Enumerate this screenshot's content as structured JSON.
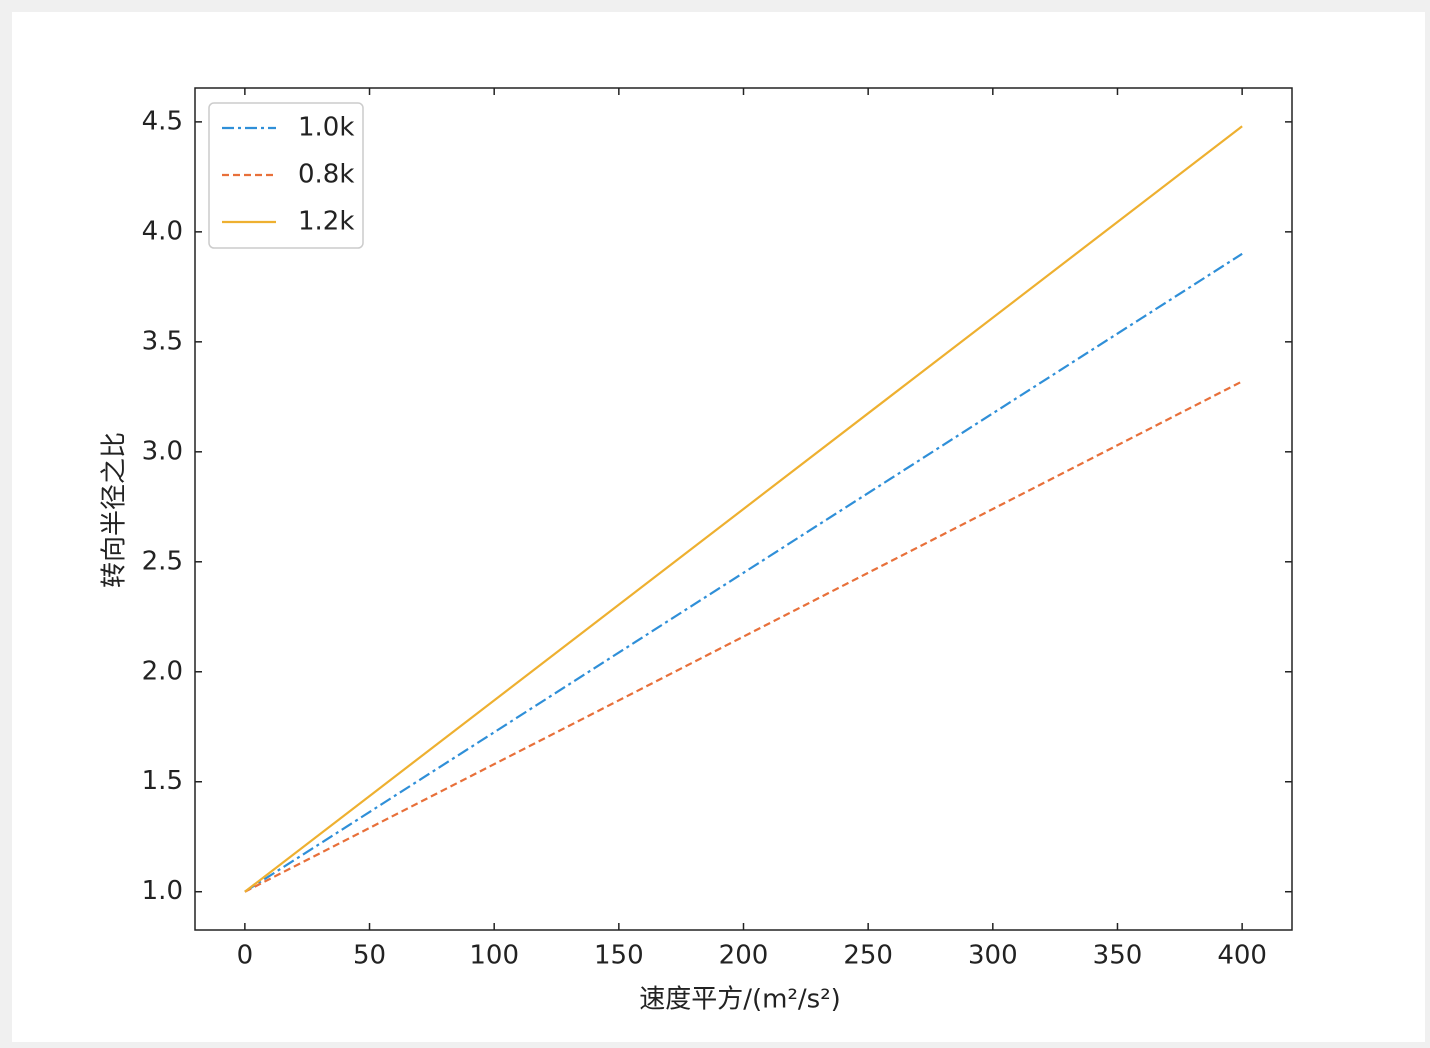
{
  "chart_data": {
    "type": "line",
    "xlabel": "速度平方/(m²/s²)",
    "ylabel": "转向半径之比",
    "x": [
      0,
      400
    ],
    "series": [
      {
        "name": "1.0k",
        "color": "#2f8fd8",
        "linestyle": "dashdot",
        "values": [
          1.0,
          3.9
        ]
      },
      {
        "name": "0.8k",
        "color": "#e8703a",
        "linestyle": "dashed",
        "values": [
          1.0,
          3.32
        ]
      },
      {
        "name": "1.2k",
        "color": "#eeb030",
        "linestyle": "solid",
        "values": [
          1.0,
          4.48
        ]
      }
    ],
    "xlim": [
      -20,
      420
    ],
    "xticks": [
      0,
      50,
      100,
      150,
      200,
      250,
      300,
      350,
      400
    ],
    "ylim": [
      0.826,
      4.654
    ],
    "yticks": [
      {
        "value": 1,
        "label": "1.0"
      },
      1.5,
      {
        "value": 2,
        "label": "2.0"
      },
      2.5,
      {
        "value": 3,
        "label": "3.0"
      },
      3.5,
      {
        "value": 4,
        "label": "4.0"
      },
      4.5
    ],
    "legend": "upper left",
    "tick_direction": "in"
  }
}
